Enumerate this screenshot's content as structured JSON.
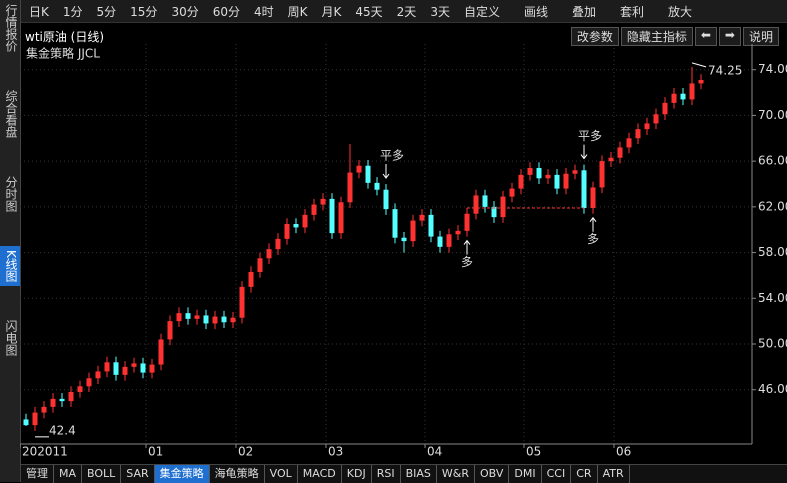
{
  "sidebar": {
    "tabs": [
      "行情报价",
      "综合看盘",
      "分时图",
      "K线图",
      "闪电图"
    ],
    "active": 3
  },
  "toolbar": {
    "items": [
      "日K",
      "1分",
      "5分",
      "15分",
      "30分",
      "60分",
      "4时",
      "周K",
      "月K",
      "45天",
      "2天",
      "3天",
      "自定义"
    ],
    "tools": [
      "画线",
      "叠加",
      "套利",
      "放大"
    ]
  },
  "header": {
    "title": "wti原油 (日线)",
    "buttons": [
      "改参数",
      "隐藏主指标",
      "⬅",
      "➡",
      "说明"
    ]
  },
  "indicator_tabs": {
    "items": [
      "管理",
      "MA",
      "BOLL",
      "SAR",
      "集金策略",
      "海龟策略",
      "VOL",
      "MACD",
      "KDJ",
      "RSI",
      "BIAS",
      "W&R",
      "OBV",
      "DMI",
      "CCI",
      "CR",
      "ATR"
    ],
    "active": 4
  },
  "chart_data": {
    "type": "candlestick",
    "title": "集金策略 JJCL",
    "categories": [
      "202011",
      null,
      null,
      null,
      null,
      null,
      null,
      null,
      null,
      null,
      null,
      null,
      null,
      null,
      "01",
      null,
      null,
      null,
      null,
      null,
      null,
      null,
      null,
      null,
      "02",
      null,
      null,
      null,
      null,
      null,
      null,
      null,
      null,
      null,
      "03",
      null,
      null,
      null,
      null,
      null,
      null,
      null,
      null,
      null,
      null,
      "04",
      null,
      null,
      null,
      null,
      null,
      null,
      null,
      null,
      null,
      null,
      "05",
      null,
      null,
      null,
      null,
      null,
      null,
      null,
      null,
      null,
      "06",
      null,
      null,
      null,
      null,
      null,
      null,
      null,
      null,
      null
    ],
    "open": [
      43.4,
      42.9,
      44.0,
      44.5,
      45.2,
      45.0,
      45.8,
      46.3,
      47.0,
      47.6,
      48.4,
      47.3,
      48.0,
      48.3,
      47.5,
      48.2,
      50.4,
      52.0,
      52.7,
      52.2,
      52.5,
      51.8,
      52.4,
      51.9,
      52.3,
      55.0,
      56.3,
      57.5,
      58.3,
      59.2,
      60.5,
      60.2,
      61.3,
      62.2,
      62.7,
      59.7,
      62.4,
      65.0,
      65.6,
      64.1,
      63.5,
      61.8,
      59.3,
      59.0,
      60.8,
      61.3,
      59.4,
      58.5,
      59.6,
      59.9,
      61.4,
      63.0,
      62.0,
      61.1,
      62.9,
      63.6,
      64.8,
      65.4,
      64.5,
      64.8,
      63.6,
      64.9,
      65.2,
      61.9,
      63.7,
      66.0,
      66.3,
      67.2,
      68.0,
      68.8,
      69.3,
      70.1,
      71.1,
      71.9,
      71.4,
      72.8
    ],
    "high": [
      43.9,
      44.5,
      45.0,
      45.7,
      45.7,
      46.3,
      46.8,
      47.5,
      48.1,
      48.9,
      48.9,
      48.5,
      48.8,
      48.8,
      48.7,
      50.9,
      52.5,
      53.2,
      53.2,
      53.0,
      53.0,
      52.9,
      52.9,
      52.8,
      55.5,
      56.8,
      58.0,
      58.8,
      59.7,
      61.0,
      61.0,
      61.8,
      62.7,
      63.2,
      63.2,
      62.9,
      67.5,
      66.1,
      66.1,
      64.6,
      64.0,
      62.3,
      59.8,
      61.3,
      61.8,
      61.8,
      59.9,
      60.1,
      60.4,
      61.9,
      63.5,
      63.5,
      62.5,
      63.4,
      64.1,
      65.3,
      65.9,
      65.9,
      65.3,
      65.3,
      65.4,
      65.7,
      65.7,
      64.2,
      66.5,
      66.8,
      67.7,
      68.5,
      69.3,
      69.8,
      70.6,
      71.6,
      72.4,
      72.4,
      74.25,
      73.6
    ],
    "low": [
      42.82,
      42.4,
      43.5,
      44.0,
      44.5,
      44.5,
      45.3,
      45.8,
      46.5,
      47.1,
      46.8,
      46.8,
      47.5,
      47.0,
      47.0,
      47.7,
      49.9,
      51.5,
      51.7,
      51.7,
      51.3,
      51.3,
      51.4,
      51.4,
      51.8,
      54.5,
      55.8,
      57.0,
      57.8,
      58.7,
      59.7,
      59.7,
      60.8,
      61.7,
      59.2,
      59.2,
      61.9,
      64.5,
      63.6,
      63.0,
      61.3,
      58.8,
      58.0,
      58.5,
      60.3,
      58.9,
      58.0,
      58.0,
      59.1,
      59.4,
      60.9,
      61.5,
      60.6,
      60.6,
      62.4,
      63.1,
      64.3,
      64.0,
      64.0,
      63.1,
      63.1,
      64.4,
      61.4,
      61.4,
      63.2,
      65.5,
      65.8,
      66.7,
      67.5,
      68.3,
      68.8,
      69.6,
      70.6,
      70.9,
      70.9,
      72.3
    ],
    "close": [
      42.9,
      44.0,
      44.5,
      45.2,
      45.0,
      45.8,
      46.3,
      47.0,
      47.6,
      48.4,
      47.3,
      48.0,
      48.3,
      47.5,
      48.2,
      50.4,
      52.0,
      52.7,
      52.2,
      52.5,
      51.8,
      52.4,
      51.9,
      52.3,
      55.0,
      56.3,
      57.5,
      58.3,
      59.2,
      60.5,
      60.2,
      61.3,
      62.2,
      62.7,
      59.7,
      62.4,
      65.0,
      65.6,
      64.1,
      63.5,
      61.8,
      59.3,
      59.0,
      60.8,
      61.3,
      59.4,
      58.5,
      59.6,
      59.9,
      61.4,
      63.0,
      62.0,
      61.1,
      62.9,
      63.6,
      64.8,
      65.4,
      64.5,
      64.8,
      63.6,
      64.9,
      65.2,
      61.9,
      63.7,
      66.0,
      66.3,
      67.2,
      68.0,
      68.8,
      69.3,
      70.1,
      71.1,
      71.9,
      71.4,
      72.8,
      73.1
    ],
    "up_color": "#ff3232",
    "down_color": "#54ffff",
    "ylim": [
      41.6,
      75.9
    ],
    "yticks": [
      {
        "value": 46,
        "label": "46.00"
      },
      {
        "value": 50,
        "label": "50.00"
      },
      {
        "value": 54,
        "label": "54.00"
      },
      {
        "value": 58,
        "label": "58.00"
      },
      {
        "value": 62,
        "label": "62.00"
      },
      {
        "value": 66,
        "label": "66.00"
      },
      {
        "value": 70,
        "label": "70.00"
      },
      {
        "value": 74,
        "label": "74.00"
      }
    ],
    "grid": true,
    "signals": [
      {
        "label": "平多",
        "index": 40,
        "color": "#00e000"
      },
      {
        "label": "多",
        "index": 49,
        "color": "#ff3232"
      },
      {
        "label": "平多",
        "index": 62,
        "color": "#00e000"
      },
      {
        "label": "多",
        "index": 63,
        "color": "#ff3232"
      }
    ]
  }
}
